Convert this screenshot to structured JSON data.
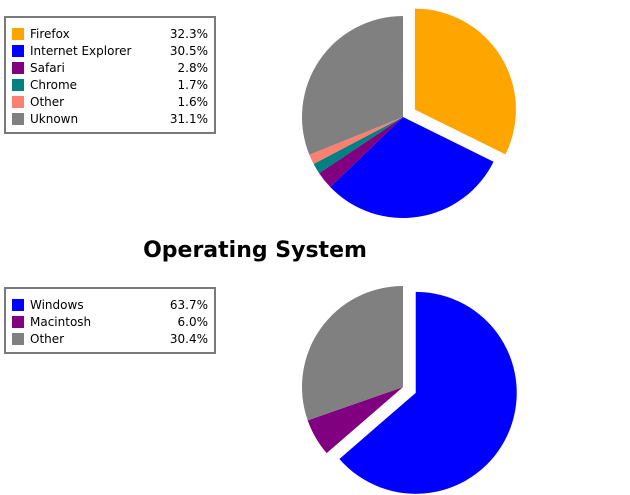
{
  "charts": [
    {
      "title": "",
      "chart_data": {
        "type": "pie",
        "categories": [
          "Firefox",
          "Internet Explorer",
          "Safari",
          "Chrome",
          "Other",
          "Uknown"
        ],
        "values": [
          32.3,
          30.5,
          2.8,
          1.7,
          1.6,
          31.1
        ],
        "value_labels": [
          "32.3%",
          "30.5%",
          "2.8%",
          "1.7%",
          "1.6%",
          "31.1%"
        ],
        "colors": [
          "#ffa500",
          "#0000ff",
          "#800080",
          "#008080",
          "#fa8072",
          "#808080"
        ],
        "exploded_index": 0,
        "legend_position": "left"
      }
    },
    {
      "title": "Operating System",
      "chart_data": {
        "type": "pie",
        "categories": [
          "Windows",
          "Macintosh",
          "Other"
        ],
        "values": [
          63.7,
          6.0,
          30.4
        ],
        "value_labels": [
          "63.7%",
          "6.0%",
          "30.4%"
        ],
        "colors": [
          "#0000ff",
          "#800080",
          "#808080"
        ],
        "exploded_index": 0,
        "legend_position": "left"
      }
    }
  ]
}
